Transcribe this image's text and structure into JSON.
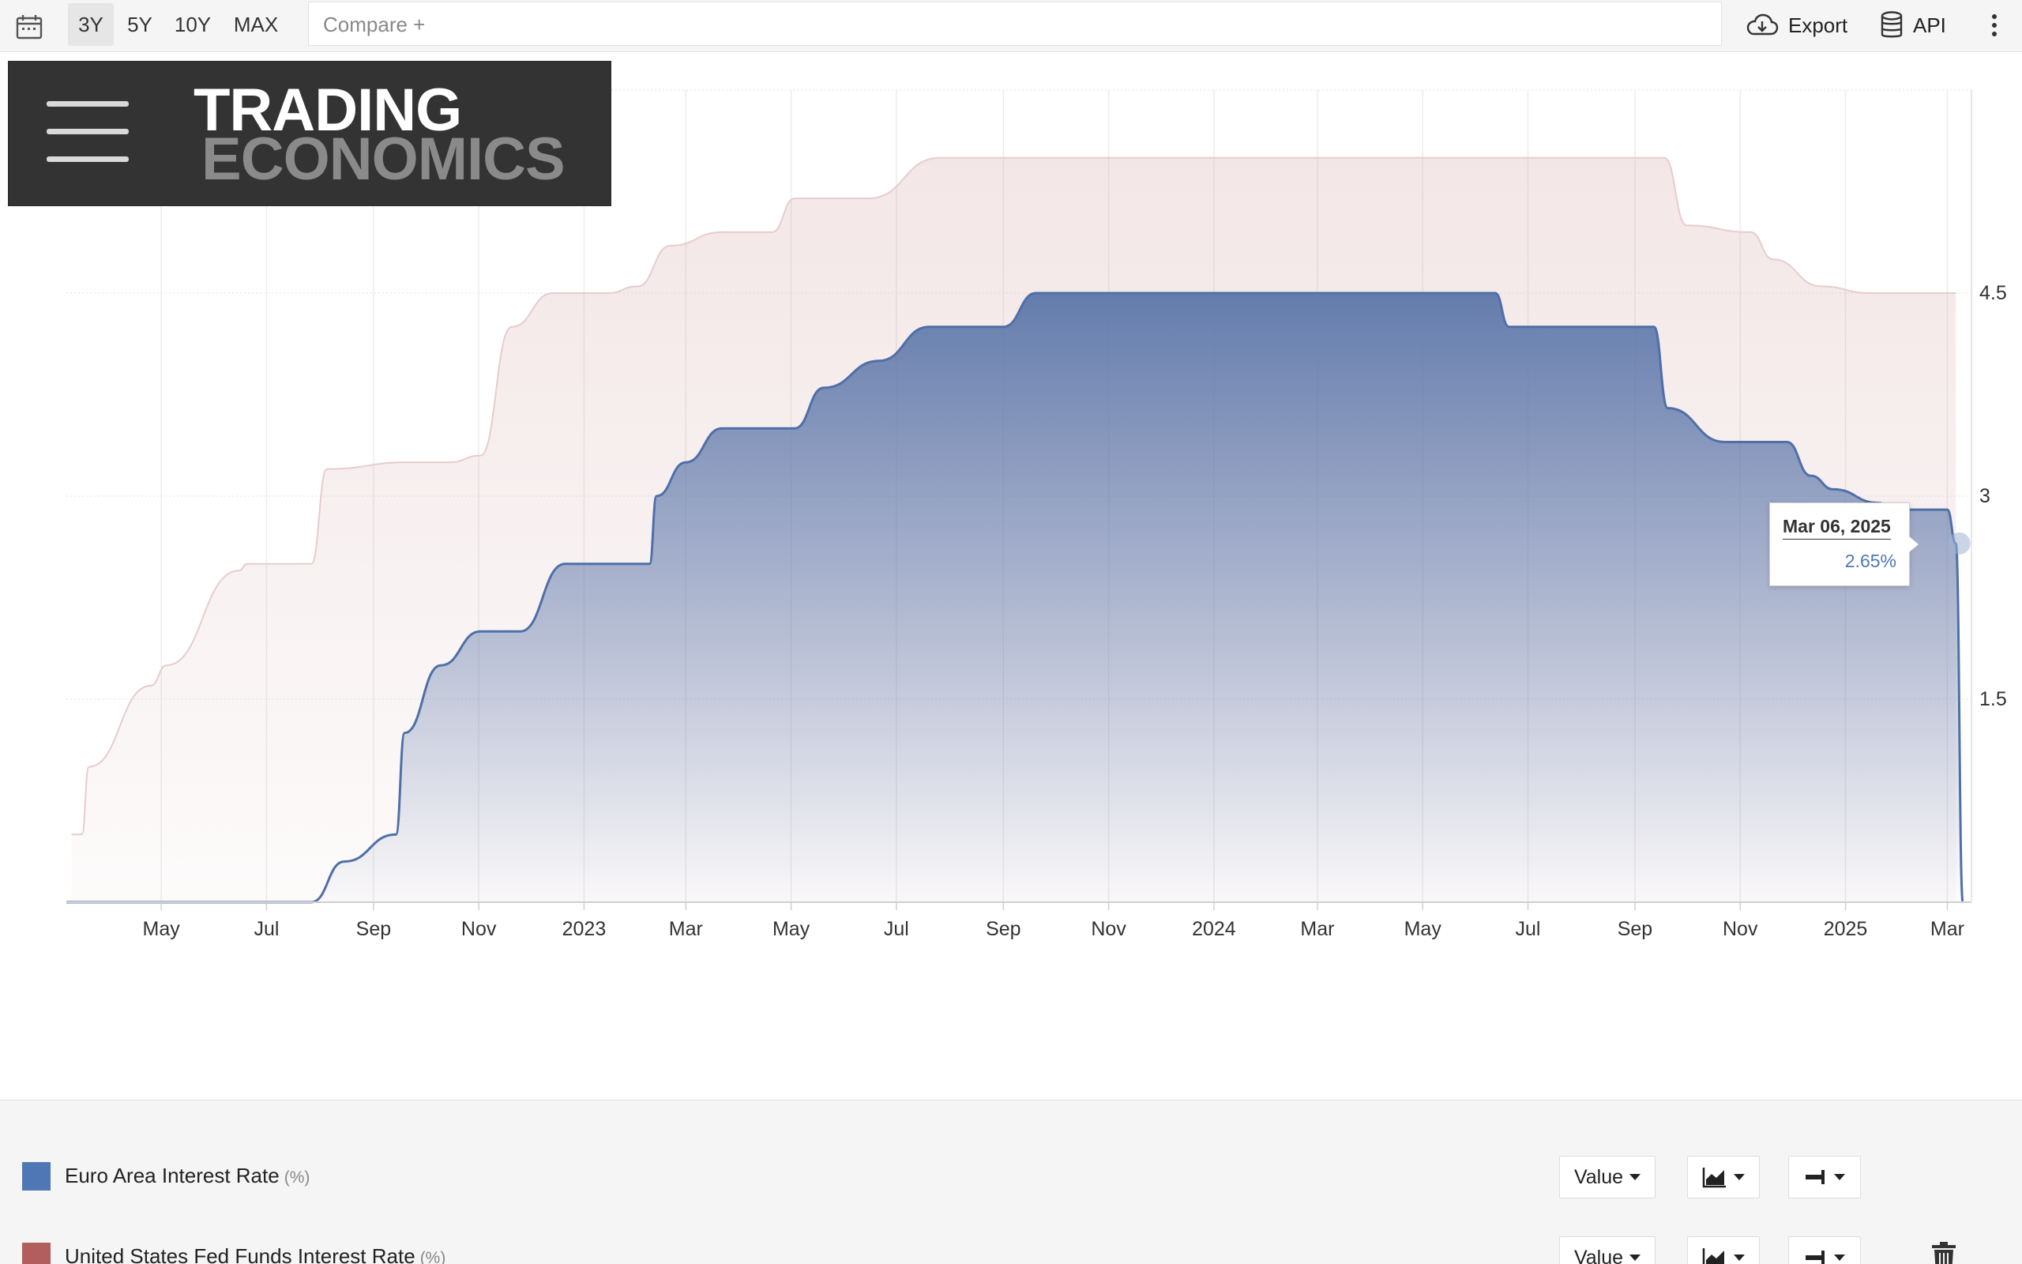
{
  "toolbar": {
    "calendar_icon": "calendar-icon",
    "ranges": [
      {
        "label": "3Y",
        "active": true
      },
      {
        "label": "5Y",
        "active": false
      },
      {
        "label": "10Y",
        "active": false
      },
      {
        "label": "MAX",
        "active": false
      }
    ],
    "compare_placeholder": "Compare +",
    "export_label": "Export",
    "export_icon": "cloud-download-icon",
    "api_label": "API",
    "api_icon": "database-icon",
    "more_icon": "vertical-dots-icon"
  },
  "logo": {
    "line1": "TRADING",
    "line2": "ECONOMICS"
  },
  "chart_data": {
    "type": "area",
    "xlabel": "",
    "ylabel": "",
    "x_tick_labels": [
      "May",
      "Jul",
      "Sep",
      "Nov",
      "2023",
      "Mar",
      "May",
      "Jul",
      "Sep",
      "Nov",
      "2024",
      "Mar",
      "May",
      "Jul",
      "Sep",
      "Nov",
      "2025",
      "Mar"
    ],
    "y_tick_labels": [
      "1.5",
      "3",
      "4.5"
    ],
    "ylim": [
      0,
      6
    ],
    "xlim": [
      "2022-03-07",
      "2025-03-15"
    ],
    "grid": true,
    "y_axis_position": "right",
    "series": [
      {
        "name": "United States Fed Funds Interest Rate",
        "unit": "%",
        "color": "#b25e5e",
        "x": [
          "2022-03-10",
          "2022-03-16",
          "2022-03-20",
          "2022-04-25",
          "2022-05-04",
          "2022-06-15",
          "2022-06-20",
          "2022-07-27",
          "2022-08-05",
          "2022-09-21",
          "2022-10-15",
          "2022-11-02",
          "2022-11-20",
          "2022-12-14",
          "2023-01-15",
          "2023-02-01",
          "2023-02-20",
          "2023-03-22",
          "2023-04-20",
          "2023-05-03",
          "2023-06-15",
          "2023-07-26",
          "2023-09-01",
          "2024-09-18",
          "2024-10-01",
          "2024-11-07",
          "2024-11-20",
          "2024-12-18",
          "2025-01-15",
          "2025-03-06"
        ],
        "values": [
          0.5,
          0.5,
          1.0,
          1.6,
          1.75,
          2.45,
          2.5,
          2.5,
          3.2,
          3.25,
          3.25,
          3.3,
          4.25,
          4.5,
          4.5,
          4.55,
          4.85,
          4.95,
          4.95,
          5.2,
          5.2,
          5.5,
          5.5,
          5.5,
          5.0,
          4.95,
          4.75,
          4.55,
          4.5,
          4.5
        ]
      },
      {
        "name": "Euro Area Interest Rate",
        "unit": "%",
        "color": "#4f77b5",
        "x": [
          "2022-03-07",
          "2022-07-15",
          "2022-07-27",
          "2022-08-15",
          "2022-09-14",
          "2022-09-19",
          "2022-10-10",
          "2022-11-02",
          "2022-11-25",
          "2022-12-21",
          "2023-02-08",
          "2023-02-12",
          "2023-03-01",
          "2023-03-22",
          "2023-05-03",
          "2023-05-20",
          "2023-06-21",
          "2023-07-20",
          "2023-09-01",
          "2023-09-20",
          "2024-06-12",
          "2024-06-20",
          "2024-09-12",
          "2024-09-20",
          "2024-10-23",
          "2024-11-28",
          "2024-12-12",
          "2024-12-25",
          "2025-01-20",
          "2025-01-30",
          "2025-02-10",
          "2025-03-01",
          "2025-03-06",
          "2025-03-10"
        ],
        "values": [
          0,
          0,
          0,
          0.3,
          0.5,
          1.25,
          1.75,
          2.0,
          2.0,
          2.5,
          2.5,
          3.0,
          3.25,
          3.5,
          3.5,
          3.8,
          4.0,
          4.25,
          4.25,
          4.5,
          4.5,
          4.25,
          4.25,
          3.65,
          3.4,
          3.4,
          3.15,
          3.05,
          2.95,
          2.9,
          2.9,
          2.9,
          2.65,
          0
        ]
      }
    ],
    "tooltip": {
      "date": "Mar 06, 2025",
      "value": "2.65%"
    }
  },
  "legend": {
    "rows": [
      {
        "label": "Euro Area Interest Rate",
        "unit": "(%)",
        "color": "#4f77b5",
        "value_btn": "Value",
        "chart_icon": "area-chart-icon",
        "axis_icon": "axis-side-icon"
      },
      {
        "label": "United States Fed Funds Interest Rate",
        "unit": "(%)",
        "color": "#b25e5e",
        "value_btn": "Value",
        "chart_icon": "area-chart-icon",
        "axis_icon": "axis-side-icon"
      }
    ],
    "trash_icon": "trash-icon"
  }
}
